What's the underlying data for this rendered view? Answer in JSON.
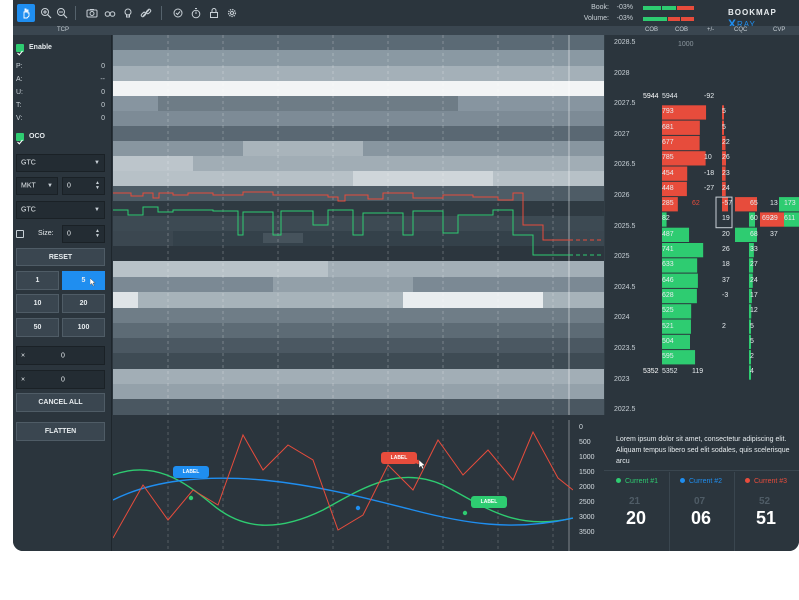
{
  "toolbar": {
    "icons": [
      "hand-icon",
      "zoom-in-icon",
      "zoom-out-icon",
      "camera-icon",
      "glasses-icon",
      "bulb-icon",
      "link-icon",
      "chat-icon",
      "timer-icon",
      "lock-icon",
      "gear-icon"
    ],
    "book_label": "Book:",
    "book_value": "-03%",
    "volume_label": "Volume:",
    "volume_value": "-03%",
    "brand_main": "BOOKMAP",
    "brand_x": "X",
    "brand_ray": "RAY"
  },
  "header_strip": {
    "tcp": "TCP",
    "cob1": "COB",
    "cob2": "COB",
    "plusminus": "+/-",
    "cqc": "CQC",
    "cvp": "CVP"
  },
  "left_panel": {
    "enable_label": "Enable",
    "stats": [
      {
        "key": "P:",
        "value": "0"
      },
      {
        "key": "A:",
        "value": "--"
      },
      {
        "key": "U:",
        "value": "0"
      },
      {
        "key": "T:",
        "value": "0"
      },
      {
        "key": "V:",
        "value": "0"
      }
    ],
    "oco_label": "OCO",
    "tif1": "GTC",
    "order_type": "MKT",
    "qty": "0",
    "tif2": "GTC",
    "size_label": "Size:",
    "size_value": "0",
    "reset_label": "RESET",
    "qty_buttons": [
      "1",
      "5",
      "10",
      "20",
      "50",
      "100"
    ],
    "selected_qty": "5",
    "x1_symbol": "×",
    "x1_value": "0",
    "x2_symbol": "×",
    "x2_value": "0",
    "cancel_label": "CANCEL ALL",
    "flatten_label": "FLATTEN"
  },
  "dom": {
    "top_value": "1000",
    "prices": [
      "2028.5",
      "2028",
      "2027.5",
      "2027",
      "2026.5",
      "2026",
      "2025.5",
      "2025",
      "2024.5",
      "2024",
      "2023.5",
      "2023",
      "2022.5"
    ],
    "rows": [
      {
        "p": "2027.5",
        "a": "5944",
        "b": "5944",
        "c": "-92",
        "d": "",
        "e": "",
        "f": ""
      },
      {
        "p": "",
        "a": "",
        "b": "793",
        "c": "",
        "d": "5",
        "e": "",
        "f": ""
      },
      {
        "p": "2027",
        "a": "",
        "b": "681",
        "c": "",
        "d": "5",
        "e": "",
        "f": ""
      },
      {
        "p": "",
        "a": "",
        "b": "677",
        "c": "",
        "d": "22",
        "e": "",
        "f": ""
      },
      {
        "p": "2026.5",
        "a": "",
        "b": "785",
        "c": "10",
        "d": "26",
        "e": "",
        "f": ""
      },
      {
        "p": "",
        "a": "",
        "b": "454",
        "c": "-18",
        "d": "23",
        "e": "",
        "f": ""
      },
      {
        "p": "2026",
        "a": "",
        "b": "448",
        "c": "-27",
        "d": "24",
        "e": "",
        "f": ""
      },
      {
        "p": "",
        "a": "",
        "b": "285",
        "c": "62",
        "d": "-57",
        "e": "65",
        "f": "13"
      },
      {
        "p": "2025.5",
        "a": "",
        "b": "82",
        "c": "",
        "d": "19",
        "e": "60",
        "f": "39"
      },
      {
        "p": "",
        "a": "",
        "b": "487",
        "c": "",
        "d": "20",
        "e": "68",
        "f": "37"
      },
      {
        "p": "2025",
        "a": "",
        "b": "741",
        "c": "",
        "d": "26",
        "e": "33",
        "f": ""
      },
      {
        "p": "",
        "a": "",
        "b": "633",
        "c": "",
        "d": "18",
        "e": "27",
        "f": ""
      },
      {
        "p": "2024.5",
        "a": "",
        "b": "646",
        "c": "",
        "d": "37",
        "e": "24",
        "f": ""
      },
      {
        "p": "",
        "a": "",
        "b": "628",
        "c": "",
        "d": "-3",
        "e": "17",
        "f": ""
      },
      {
        "p": "2024",
        "a": "",
        "b": "525",
        "c": "",
        "d": "",
        "e": "12",
        "f": ""
      },
      {
        "p": "",
        "a": "",
        "b": "521",
        "c": "",
        "d": "2",
        "e": "5",
        "f": ""
      },
      {
        "p": "2023.5",
        "a": "",
        "b": "504",
        "c": "",
        "d": "",
        "e": "5",
        "f": ""
      },
      {
        "p": "",
        "a": "",
        "b": "595",
        "c": "",
        "d": "",
        "e": "2",
        "f": ""
      },
      {
        "p": "2023",
        "a": "5352",
        "b": "5352",
        "c": "119",
        "d": "",
        "e": "4",
        "f": ""
      }
    ],
    "extra_right": [
      "173",
      "692",
      "611"
    ]
  },
  "lower_chart": {
    "y_ticks": [
      "0",
      "500",
      "1000",
      "1500",
      "2000",
      "2500",
      "3000",
      "3500"
    ],
    "labels": [
      "LABEL",
      "LABEL",
      "LABEL"
    ]
  },
  "info_panel": {
    "text": "Lorem ipsum dolor sit amet, consectetur adipiscing elit. Aliquam tempus libero sed elit sodales, quis scelerisque arcu",
    "currents": [
      {
        "label": "Current #1",
        "value": "20",
        "ghost": "21",
        "color": "#2ecc71"
      },
      {
        "label": "Current #2",
        "value": "06",
        "ghost": "07",
        "color": "#1f8ef0"
      },
      {
        "label": "Current #3",
        "value": "51",
        "ghost": "52",
        "color": "#e74c3c"
      }
    ]
  }
}
